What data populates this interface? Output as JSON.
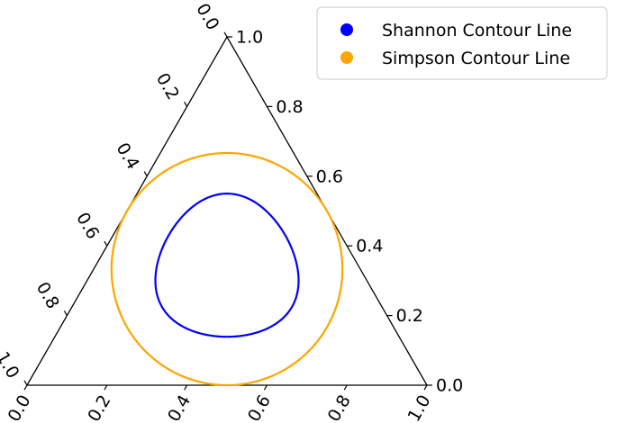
{
  "chart_data": {
    "type": "ternary-contour",
    "title": "",
    "axes": {
      "right": {
        "ticks": [
          "0.0",
          "0.2",
          "0.4",
          "0.6",
          "0.8",
          "1.0"
        ]
      },
      "left": {
        "ticks": [
          "0.0",
          "0.2",
          "0.4",
          "0.6",
          "0.8",
          "1.0"
        ]
      },
      "bottom": {
        "ticks": [
          "0.0",
          "0.2",
          "0.4",
          "0.6",
          "0.8",
          "1.0"
        ]
      },
      "range": [
        0,
        1
      ]
    },
    "grid": false,
    "legend_position": "top-right",
    "series": [
      {
        "name": "Shannon Contour Line",
        "color": "#0000ff",
        "contour_level": 1.0,
        "measure": "shannon"
      },
      {
        "name": "Simpson Contour Line",
        "color": "#ffa500",
        "contour_level": 0.5,
        "measure": "simpson"
      }
    ]
  }
}
